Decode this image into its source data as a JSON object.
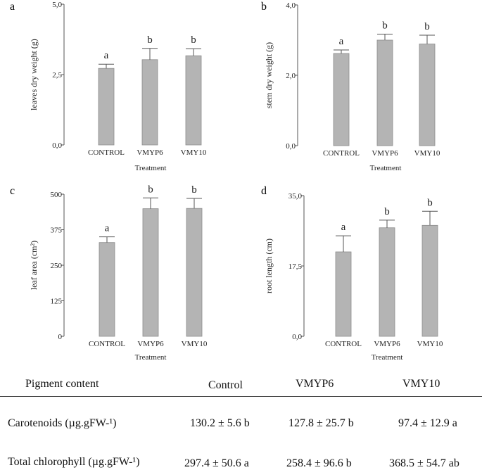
{
  "chart_data": [
    {
      "type": "bar",
      "panel": "a",
      "categories": [
        "CONTROL",
        "VMYP6",
        "VMY10"
      ],
      "values": [
        2.72,
        3.03,
        3.17
      ],
      "errors": [
        0.15,
        0.4,
        0.25
      ],
      "significance": [
        "a",
        "b",
        "b"
      ],
      "xlabel": "Treatment",
      "ylabel": "leaves dry weight (g)",
      "ylim": [
        0,
        5
      ],
      "yticks": [
        "0,0",
        "2,5",
        "5,0"
      ],
      "ytick_values": [
        0,
        2.5,
        5
      ]
    },
    {
      "type": "bar",
      "panel": "b",
      "categories": [
        "CONTROL",
        "VMYP6",
        "VMY10"
      ],
      "values": [
        2.62,
        3.0,
        2.89
      ],
      "errors": [
        0.1,
        0.17,
        0.25
      ],
      "significance": [
        "a",
        "b",
        "b"
      ],
      "xlabel": "Treatment",
      "ylabel": "stem dry weight (g)",
      "ylim": [
        0,
        4
      ],
      "yticks": [
        "0,0",
        "2,0",
        "4,0"
      ],
      "ytick_values": [
        0,
        2,
        4
      ]
    },
    {
      "type": "bar",
      "panel": "c",
      "categories": [
        "CONTROL",
        "VMYP6",
        "VMY10"
      ],
      "values": [
        330,
        449,
        450
      ],
      "errors": [
        20,
        38,
        35
      ],
      "significance": [
        "a",
        "b",
        "b"
      ],
      "xlabel": "Treatment",
      "ylabel": "leaf area (cm²)",
      "ylim": [
        0,
        500
      ],
      "yticks": [
        "0",
        "125",
        "250",
        "375",
        "500"
      ],
      "ytick_values": [
        0,
        125,
        250,
        375,
        500
      ]
    },
    {
      "type": "bar",
      "panel": "d",
      "categories": [
        "CONTROL",
        "VMYP6",
        "VMY10"
      ],
      "values": [
        21.0,
        27.0,
        27.6
      ],
      "errors": [
        4.0,
        1.9,
        3.5
      ],
      "significance": [
        "a",
        "b",
        "b"
      ],
      "xlabel": "Treatment",
      "ylabel": "root length (cm)",
      "ylim": [
        0,
        35
      ],
      "yticks": [
        "0,0",
        "17,5",
        "35,0"
      ],
      "ytick_values": [
        0,
        17.5,
        35
      ]
    }
  ],
  "pigment_table": {
    "header": {
      "label": "Pigment content",
      "col1": "Control",
      "col2": "VMYP6",
      "col3": "VMY10"
    },
    "rows": [
      {
        "label": "Carotenoids (µg.gFW-¹)",
        "col1": "130.2 ± 5.6 b",
        "col2": "127.8 ± 25.7 b",
        "col3": "97.4 ± 12.9 a"
      },
      {
        "label": "Total chlorophyll (µg.gFW-¹)",
        "col1": "297.4 ± 50.6 a",
        "col2": "258.4 ± 96.6 b",
        "col3": "368.5 ± 54.7 ab"
      }
    ]
  }
}
